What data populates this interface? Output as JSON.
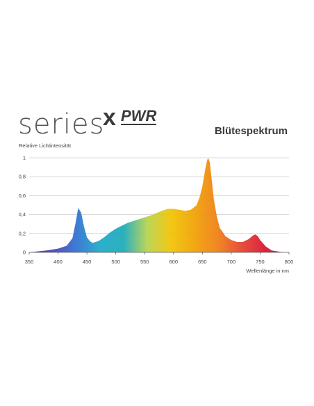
{
  "brand": {
    "series_text": "series",
    "x_text": "x",
    "pwr_text": "PWR"
  },
  "chart_data": {
    "type": "area",
    "title": "Blütespektrum",
    "xlabel": "Wellenlänge in nm",
    "ylabel": "Relative Lichtintensität",
    "xlim": [
      350,
      800
    ],
    "ylim": [
      0,
      1
    ],
    "xticks": [
      "350",
      "400",
      "450",
      "500",
      "550",
      "600",
      "650",
      "700",
      "750",
      "800"
    ],
    "yticks": [
      "0",
      "0,2",
      "0,4",
      "0,6",
      "0,8",
      "1"
    ],
    "grid": "horizontal",
    "series": [
      {
        "x": [
          350,
          380,
          400,
          415,
          425,
          430,
          435,
          440,
          445,
          450,
          455,
          460,
          470,
          480,
          490,
          500,
          520,
          540,
          560,
          580,
          590,
          600,
          610,
          620,
          630,
          640,
          645,
          650,
          655,
          658,
          660,
          663,
          666,
          670,
          675,
          680,
          690,
          700,
          710,
          720,
          730,
          738,
          742,
          746,
          750,
          760,
          770,
          780,
          790,
          800
        ],
        "y": [
          0.0,
          0.02,
          0.04,
          0.07,
          0.15,
          0.3,
          0.47,
          0.42,
          0.27,
          0.16,
          0.12,
          0.1,
          0.12,
          0.16,
          0.21,
          0.25,
          0.31,
          0.35,
          0.39,
          0.44,
          0.46,
          0.46,
          0.45,
          0.44,
          0.45,
          0.5,
          0.58,
          0.7,
          0.88,
          0.97,
          1.0,
          0.95,
          0.78,
          0.55,
          0.38,
          0.26,
          0.17,
          0.13,
          0.11,
          0.11,
          0.14,
          0.18,
          0.19,
          0.17,
          0.13,
          0.06,
          0.02,
          0.01,
          0.0,
          0.0
        ],
        "colors": [
          "#3b2fa6",
          "#4a3fb8",
          "#2e6fd0",
          "#19a8c7",
          "#1aa9b8",
          "#b6d34a",
          "#f2c200",
          "#f0a000",
          "#ef7c12",
          "#e4402a",
          "#d8102e",
          "#c5164a"
        ]
      }
    ]
  }
}
